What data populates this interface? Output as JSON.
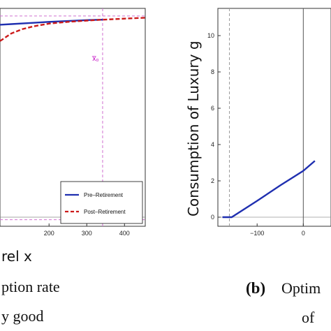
{
  "chart_data": [
    {
      "type": "line",
      "panel": "left",
      "xlabel": "rel x",
      "ylabel": "",
      "title": "",
      "xlim": [
        70,
        455
      ],
      "ylim": [
        0,
        1
      ],
      "xticks": [
        200,
        300,
        400
      ],
      "xtick_labels": [
        "200",
        "300",
        "400"
      ],
      "annotation": "x̅₀",
      "annotation_x": 342,
      "hline_top": 0.965,
      "hline_bottom": 0.03,
      "legend": {
        "placement": "bottom-right",
        "entries": [
          "Pre–Retirement",
          "Post–Retirement"
        ]
      },
      "series": [
        {
          "name": "Pre–Retirement",
          "color": "#1f2fb0",
          "dash": "solid",
          "x": [
            70,
            100,
            150,
            200,
            250,
            300,
            342
          ],
          "y": [
            0.925,
            0.928,
            0.933,
            0.938,
            0.942,
            0.946,
            0.948
          ]
        },
        {
          "name": "Post–Retirement",
          "color": "#cc1a1a",
          "dash": "dashed",
          "x": [
            70,
            100,
            130,
            160,
            200,
            250,
            300,
            342,
            400,
            455
          ],
          "y": [
            0.85,
            0.885,
            0.905,
            0.918,
            0.93,
            0.938,
            0.944,
            0.948,
            0.953,
            0.957
          ]
        }
      ],
      "caption_lines": [
        "ption rate",
        "y good"
      ]
    },
    {
      "type": "line",
      "panel": "right",
      "xlabel": "",
      "ylabel": "Consumption of Luxury g",
      "title": "",
      "xlim": [
        -185,
        60
      ],
      "ylim": [
        -0.5,
        11.5
      ],
      "xticks": [
        -100,
        0
      ],
      "xtick_labels": [
        "−100",
        "0"
      ],
      "yticks": [
        0,
        2,
        4,
        6,
        8,
        10
      ],
      "ytick_labels": [
        "0",
        "2",
        "4",
        "6",
        "8",
        "10"
      ],
      "vline_dashed": -160,
      "vline_solid": 0,
      "series": [
        {
          "name": "",
          "color": "#1f2fb0",
          "dash": "solid",
          "x": [
            -175,
            -155,
            -100,
            -50,
            0,
            25
          ],
          "y": [
            0,
            0,
            0.9,
            1.75,
            2.55,
            3.1
          ]
        }
      ],
      "caption_label": "(b)",
      "caption_lines": [
        "Optim",
        "of"
      ]
    }
  ]
}
